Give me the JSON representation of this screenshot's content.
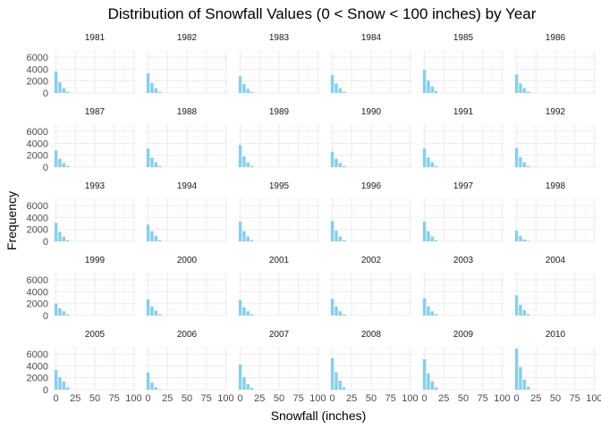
{
  "chart_data": {
    "type": "bar",
    "title": "Distribution of Snowfall Values (0 < Snow < 100 inches) by Year",
    "xlabel": "Snowfall (inches)",
    "ylabel": "Frequency",
    "xlim": [
      -3,
      103
    ],
    "ylim": [
      0,
      7200
    ],
    "xticks": [
      0,
      25,
      50,
      75,
      100
    ],
    "yticks": [
      0,
      2000,
      4000,
      6000
    ],
    "bin_centers": [
      0,
      5,
      10,
      15
    ],
    "bar_color": "#87ceeb",
    "grid": true,
    "facets": [
      {
        "year": "1981",
        "values": [
          3600,
          1800,
          800,
          200
        ]
      },
      {
        "year": "1982",
        "values": [
          3300,
          1700,
          800,
          200
        ]
      },
      {
        "year": "1983",
        "values": [
          2800,
          1500,
          700,
          200
        ]
      },
      {
        "year": "1984",
        "values": [
          3000,
          1600,
          800,
          200
        ]
      },
      {
        "year": "1985",
        "values": [
          3900,
          2100,
          1100,
          300
        ]
      },
      {
        "year": "1986",
        "values": [
          3100,
          1600,
          800,
          200
        ]
      },
      {
        "year": "1987",
        "values": [
          2800,
          1400,
          700,
          200
        ]
      },
      {
        "year": "1988",
        "values": [
          3100,
          1600,
          800,
          200
        ]
      },
      {
        "year": "1989",
        "values": [
          3700,
          1800,
          800,
          200
        ]
      },
      {
        "year": "1990",
        "values": [
          2600,
          1400,
          700,
          200
        ]
      },
      {
        "year": "1991",
        "values": [
          3100,
          1600,
          800,
          200
        ]
      },
      {
        "year": "1992",
        "values": [
          3200,
          1700,
          800,
          200
        ]
      },
      {
        "year": "1993",
        "values": [
          3100,
          1600,
          800,
          200
        ]
      },
      {
        "year": "1994",
        "values": [
          2800,
          1700,
          900,
          200
        ]
      },
      {
        "year": "1995",
        "values": [
          3300,
          1700,
          800,
          200
        ]
      },
      {
        "year": "1996",
        "values": [
          3400,
          1800,
          800,
          200
        ]
      },
      {
        "year": "1997",
        "values": [
          3300,
          1700,
          800,
          200
        ]
      },
      {
        "year": "1998",
        "values": [
          1800,
          900,
          300,
          100
        ]
      },
      {
        "year": "1999",
        "values": [
          2000,
          1200,
          700,
          200
        ]
      },
      {
        "year": "2000",
        "values": [
          2700,
          1500,
          800,
          200
        ]
      },
      {
        "year": "2001",
        "values": [
          2600,
          1400,
          700,
          200
        ]
      },
      {
        "year": "2002",
        "values": [
          2800,
          1500,
          700,
          200
        ]
      },
      {
        "year": "2003",
        "values": [
          2900,
          1500,
          700,
          200
        ]
      },
      {
        "year": "2004",
        "values": [
          3400,
          1800,
          900,
          200
        ]
      },
      {
        "year": "2005",
        "values": [
          3300,
          2100,
          1400,
          400
        ]
      },
      {
        "year": "2006",
        "values": [
          2900,
          1200,
          400,
          100
        ]
      },
      {
        "year": "2007",
        "values": [
          4200,
          2100,
          900,
          300
        ]
      },
      {
        "year": "2008",
        "values": [
          5300,
          2900,
          1500,
          400
        ]
      },
      {
        "year": "2009",
        "values": [
          5100,
          2700,
          1400,
          400
        ]
      },
      {
        "year": "2010",
        "values": [
          6900,
          3800,
          1700,
          500
        ]
      }
    ]
  }
}
